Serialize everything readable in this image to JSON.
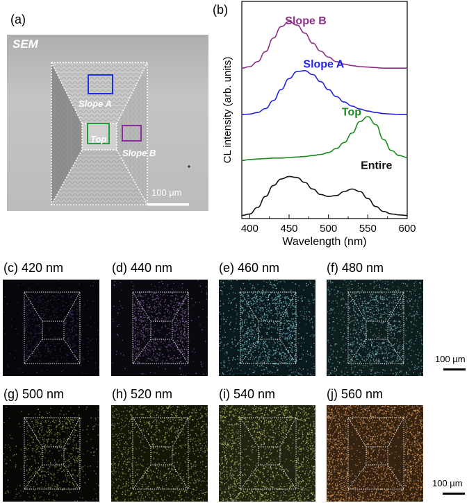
{
  "panel_a": {
    "label": "(a)",
    "sem_title": "SEM",
    "region_labels": {
      "slope_a": "Slope A",
      "top": "Top",
      "slope_b": "Slope B"
    },
    "scale_bar": "100 µm",
    "colors": {
      "slope_a": "#1a2ee6",
      "top": "#1aa33a",
      "slope_b": "#8a2a9e"
    }
  },
  "panel_b": {
    "label": "(b)",
    "chart_data": {
      "type": "line",
      "title": "",
      "xlabel": "Wavelength (nm)",
      "ylabel": "CL intensity (arb. units)",
      "xlim": [
        390,
        600
      ],
      "xticks": [
        400,
        450,
        500,
        550,
        600
      ],
      "yticks": [],
      "grid": false,
      "series": [
        {
          "name": "Slope B",
          "color": "#8e2f86",
          "offset": 2.95,
          "x": [
            390,
            400,
            410,
            420,
            430,
            440,
            450,
            460,
            470,
            480,
            490,
            500,
            510,
            520,
            530,
            540,
            550,
            560,
            570,
            580,
            590,
            600
          ],
          "y": [
            0.02,
            0.05,
            0.15,
            0.35,
            0.62,
            0.85,
            0.95,
            0.88,
            0.72,
            0.52,
            0.36,
            0.24,
            0.15,
            0.1,
            0.07,
            0.05,
            0.04,
            0.03,
            0.02,
            0.02,
            0.02,
            0.02
          ]
        },
        {
          "name": "Slope A",
          "color": "#2222e0",
          "offset": 2.02,
          "x": [
            390,
            400,
            410,
            420,
            430,
            440,
            450,
            460,
            470,
            480,
            490,
            500,
            510,
            520,
            530,
            540,
            550,
            560,
            570,
            580,
            590,
            600
          ],
          "y": [
            0.02,
            0.03,
            0.06,
            0.14,
            0.3,
            0.52,
            0.74,
            0.88,
            0.9,
            0.82,
            0.68,
            0.52,
            0.38,
            0.27,
            0.19,
            0.13,
            0.09,
            0.06,
            0.04,
            0.03,
            0.02,
            0.02
          ]
        },
        {
          "name": "Top",
          "color": "#1a8a1a",
          "offset": 1.12,
          "x": [
            390,
            400,
            410,
            420,
            430,
            440,
            450,
            460,
            470,
            480,
            490,
            500,
            510,
            520,
            530,
            540,
            550,
            560,
            570,
            580,
            590,
            600
          ],
          "y": [
            0.0,
            0.02,
            0.03,
            0.04,
            0.05,
            0.05,
            0.06,
            0.07,
            0.08,
            0.1,
            0.12,
            0.16,
            0.24,
            0.36,
            0.55,
            0.78,
            0.88,
            0.72,
            0.42,
            0.2,
            0.1,
            0.06
          ]
        },
        {
          "name": "Entire",
          "color": "#111111",
          "offset": 0.0,
          "x": [
            390,
            400,
            410,
            420,
            430,
            440,
            450,
            460,
            470,
            480,
            490,
            500,
            510,
            520,
            530,
            540,
            550,
            560,
            570,
            580,
            590,
            600
          ],
          "y": [
            0.02,
            0.05,
            0.18,
            0.4,
            0.62,
            0.75,
            0.8,
            0.78,
            0.68,
            0.55,
            0.44,
            0.4,
            0.42,
            0.5,
            0.55,
            0.5,
            0.36,
            0.2,
            0.1,
            0.05,
            0.03,
            0.02
          ]
        }
      ],
      "series_labels": [
        "Slope B",
        "Slope A",
        "Top",
        "Entire"
      ]
    }
  },
  "maps": [
    {
      "label": "(c) 420 nm",
      "wavelength": 420,
      "color": "#3a3566",
      "bg": "#06060a"
    },
    {
      "label": "(d) 440 nm",
      "wavelength": 440,
      "color": "#8a6aa8",
      "bg": "#0a090f"
    },
    {
      "label": "(e) 460 nm",
      "wavelength": 460,
      "color": "#7ec8d6",
      "bg": "#0a1a1c"
    },
    {
      "label": "(f) 480 nm",
      "wavelength": 480,
      "color": "#7fb8b8",
      "bg": "#0e1e1e"
    },
    {
      "label": "(g) 500 nm",
      "wavelength": 500,
      "color": "#9aa04a",
      "bg": "#070805"
    },
    {
      "label": "(h) 520 nm",
      "wavelength": 520,
      "color": "#b0b05a",
      "bg": "#141608"
    },
    {
      "label": "(i) 540 nm",
      "wavelength": 540,
      "color": "#c8c870",
      "bg": "#202410"
    },
    {
      "label": "(j) 560 nm",
      "wavelength": 560,
      "color": "#e0a060",
      "bg": "#352210"
    }
  ],
  "scale_bar_label": "100 µm"
}
